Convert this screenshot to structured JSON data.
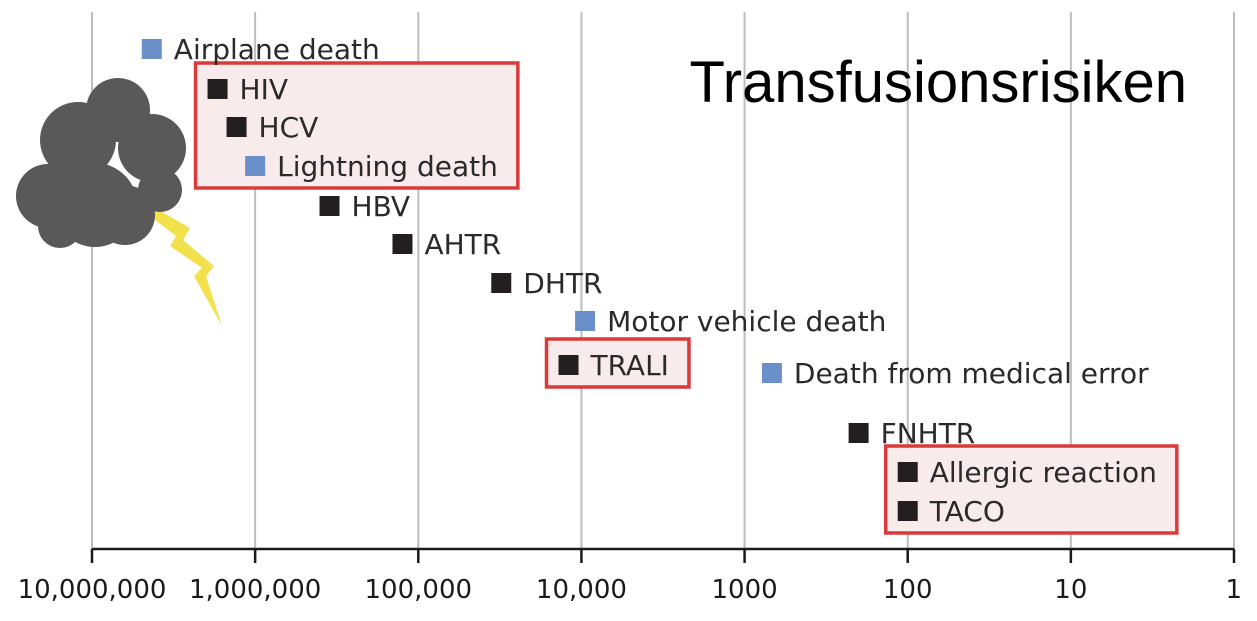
{
  "chart_data": {
    "type": "scatter",
    "title": "Transfusionsrisiken",
    "x_axis": {
      "scale": "log",
      "reversed": true,
      "range": [
        10000000,
        1
      ],
      "ticks": [
        {
          "value": 10000000,
          "label": "10,000,000"
        },
        {
          "value": 1000000,
          "label": "1,000,000"
        },
        {
          "value": 100000,
          "label": "100,000"
        },
        {
          "value": 10000,
          "label": "10,000"
        },
        {
          "value": 1000,
          "label": "1000"
        },
        {
          "value": 100,
          "label": "100"
        },
        {
          "value": 10,
          "label": "10"
        },
        {
          "value": 1,
          "label": "1"
        }
      ]
    },
    "grid": true,
    "points": [
      {
        "label": "Airplane death",
        "x": 4300000,
        "kind": "nontransfusion"
      },
      {
        "label": "HIV",
        "x": 1700000,
        "kind": "transfusion"
      },
      {
        "label": "HCV",
        "x": 1300000,
        "kind": "transfusion"
      },
      {
        "label": "Lightning death",
        "x": 1000000,
        "kind": "nontransfusion"
      },
      {
        "label": "HBV",
        "x": 350000,
        "kind": "transfusion"
      },
      {
        "label": "AHTR",
        "x": 125000,
        "kind": "transfusion"
      },
      {
        "label": "DHTR",
        "x": 31000,
        "kind": "transfusion"
      },
      {
        "label": "Motor vehicle death",
        "x": 9500,
        "kind": "nontransfusion"
      },
      {
        "label": "TRALI",
        "x": 12000,
        "kind": "transfusion"
      },
      {
        "label": "Death from medical error",
        "x": 680,
        "kind": "nontransfusion"
      },
      {
        "label": "FNHTR",
        "x": 200,
        "kind": "transfusion"
      },
      {
        "label": "Allergic reaction",
        "x": 100,
        "kind": "transfusion"
      },
      {
        "label": "TACO",
        "x": 100,
        "kind": "transfusion"
      }
    ],
    "highlight_groups": [
      [
        "HIV",
        "HCV",
        "Lightning death"
      ],
      [
        "TRALI"
      ],
      [
        "Allergic reaction",
        "TACO"
      ]
    ],
    "colors": {
      "transfusion": "#231f20",
      "nontransfusion": "#6b8fc9",
      "highlight_stroke": "#d93a3a",
      "highlight_fill": "#f7eceb",
      "grid": "#bdbdbd",
      "axis": "#1a1a1a",
      "cloud": "#595959",
      "lightning": "#f2e14c"
    },
    "decoration": {
      "icon": "storm-cloud-icon"
    }
  }
}
